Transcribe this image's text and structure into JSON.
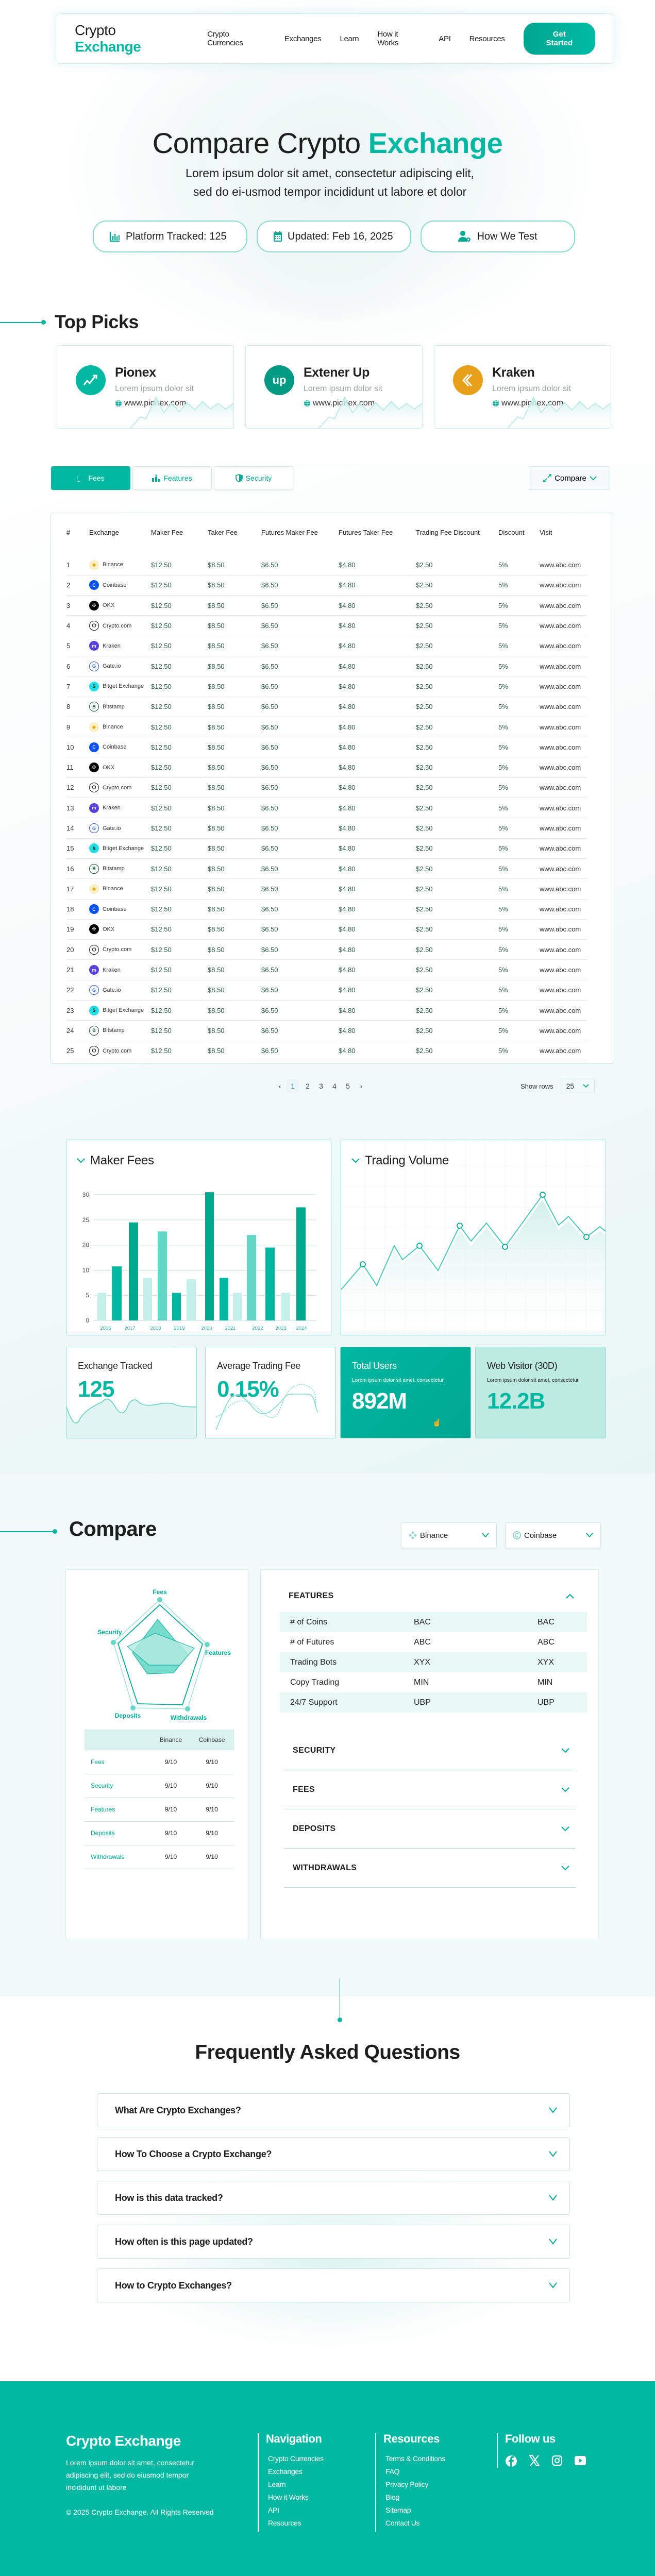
{
  "nav": {
    "logo_main": "Crypto ",
    "logo_accent": "Exchange",
    "links": [
      "Crypto Currencies",
      "Exchanges",
      "Learn",
      "How it Works",
      "API",
      "Resources"
    ],
    "cta": "Get Started"
  },
  "hero": {
    "title_main": "Compare Crypto ",
    "title_accent": "Exchange",
    "subtitle": "Lorem ipsum dolor sit amet, consectetur adipiscing elit, sed do ei-usmod tempor incididunt ut labore et dolor",
    "pills": [
      {
        "icon": "bar-chart-icon",
        "label": "Platform Tracked: 125"
      },
      {
        "icon": "calendar-icon",
        "label": "Updated: Feb 16, 2025"
      },
      {
        "icon": "user-gear-icon",
        "label": "How We Test"
      }
    ]
  },
  "top_picks": {
    "title": "Top Picks",
    "items": [
      {
        "name": "Pionex",
        "desc": "Lorem ipsum dolor sit",
        "url": "www.pionex.com",
        "color": "#00b8a2",
        "glyph": "↗"
      },
      {
        "name": "Extener Up",
        "desc": "Lorem ipsum dolor sit",
        "url": "www.pionex.com",
        "color": "#009982",
        "glyph": "up"
      },
      {
        "name": "Kraken",
        "desc": "Lorem ipsum dolor sit",
        "url": "www.pionex.com",
        "color": "#e6a01a",
        "glyph": "K"
      }
    ]
  },
  "tabs": [
    {
      "icon": "dollar-chat-icon",
      "label": "Fees",
      "active": true
    },
    {
      "icon": "podium-icon",
      "label": "Features",
      "active": false
    },
    {
      "icon": "shield-icon",
      "label": "Security",
      "active": false
    }
  ],
  "compare_button": "Compare",
  "fee_table": {
    "columns": [
      "#",
      "Exchange",
      "Maker Fee",
      "Taker Fee",
      "Futures Maker Fee",
      "Futures Taker Fee",
      "Trading Fee Discount",
      "Discount",
      "Visit"
    ],
    "rows": [
      {
        "n": "1",
        "exchange": "Binance",
        "maker": "$12.50",
        "taker": "$8.50",
        "fmaker": "$6.50",
        "ftaker": "$4.80",
        "tfd": "$2.50",
        "discount": "5%",
        "visit": "www.abc.com"
      },
      {
        "n": "2",
        "exchange": "Coinbase",
        "maker": "$12.50",
        "taker": "$8.50",
        "fmaker": "$6.50",
        "ftaker": "$4.80",
        "tfd": "$2.50",
        "discount": "5%",
        "visit": "www.abc.com"
      },
      {
        "n": "3",
        "exchange": "OKX",
        "maker": "$12.50",
        "taker": "$8.50",
        "fmaker": "$6.50",
        "ftaker": "$4.80",
        "tfd": "$2.50",
        "discount": "5%",
        "visit": "www.abc.com"
      },
      {
        "n": "4",
        "exchange": "Crypto.com",
        "maker": "$12.50",
        "taker": "$8.50",
        "fmaker": "$6.50",
        "ftaker": "$4.80",
        "tfd": "$2.50",
        "discount": "5%",
        "visit": "www.abc.com"
      },
      {
        "n": "5",
        "exchange": "Kraken",
        "maker": "$12.50",
        "taker": "$8.50",
        "fmaker": "$6.50",
        "ftaker": "$4.80",
        "tfd": "$2.50",
        "discount": "5%",
        "visit": "www.abc.com"
      },
      {
        "n": "6",
        "exchange": "Gate.io",
        "maker": "$12.50",
        "taker": "$8.50",
        "fmaker": "$6.50",
        "ftaker": "$4.80",
        "tfd": "$2.50",
        "discount": "5%",
        "visit": "www.abc.com"
      },
      {
        "n": "7",
        "exchange": "Bitget Exchange",
        "maker": "$12.50",
        "taker": "$8.50",
        "fmaker": "$6.50",
        "ftaker": "$4.80",
        "tfd": "$2.50",
        "discount": "5%",
        "visit": "www.abc.com"
      },
      {
        "n": "8",
        "exchange": "Bitstamp",
        "maker": "$12.50",
        "taker": "$8.50",
        "fmaker": "$6.50",
        "ftaker": "$4.80",
        "tfd": "$2.50",
        "discount": "5%",
        "visit": "www.abc.com"
      },
      {
        "n": "9",
        "exchange": "Binance",
        "maker": "$12.50",
        "taker": "$8.50",
        "fmaker": "$6.50",
        "ftaker": "$4.80",
        "tfd": "$2.50",
        "discount": "5%",
        "visit": "www.abc.com"
      },
      {
        "n": "10",
        "exchange": "Coinbase",
        "maker": "$12.50",
        "taker": "$8.50",
        "fmaker": "$6.50",
        "ftaker": "$4.80",
        "tfd": "$2.50",
        "discount": "5%",
        "visit": "www.abc.com"
      },
      {
        "n": "11",
        "exchange": "OKX",
        "maker": "$12.50",
        "taker": "$8.50",
        "fmaker": "$6.50",
        "ftaker": "$4.80",
        "tfd": "$2.50",
        "discount": "5%",
        "visit": "www.abc.com"
      },
      {
        "n": "12",
        "exchange": "Crypto.com",
        "maker": "$12.50",
        "taker": "$8.50",
        "fmaker": "$6.50",
        "ftaker": "$4.80",
        "tfd": "$2.50",
        "discount": "5%",
        "visit": "www.abc.com"
      },
      {
        "n": "13",
        "exchange": "Kraken",
        "maker": "$12.50",
        "taker": "$8.50",
        "fmaker": "$6.50",
        "ftaker": "$4.80",
        "tfd": "$2.50",
        "discount": "5%",
        "visit": "www.abc.com"
      },
      {
        "n": "14",
        "exchange": "Gate.io",
        "maker": "$12.50",
        "taker": "$8.50",
        "fmaker": "$6.50",
        "ftaker": "$4.80",
        "tfd": "$2.50",
        "discount": "5%",
        "visit": "www.abc.com"
      },
      {
        "n": "15",
        "exchange": "Bitget Exchange",
        "maker": "$12.50",
        "taker": "$8.50",
        "fmaker": "$6.50",
        "ftaker": "$4.80",
        "tfd": "$2.50",
        "discount": "5%",
        "visit": "www.abc.com"
      },
      {
        "n": "16",
        "exchange": "Bitstamp",
        "maker": "$12.50",
        "taker": "$8.50",
        "fmaker": "$6.50",
        "ftaker": "$4.80",
        "tfd": "$2.50",
        "discount": "5%",
        "visit": "www.abc.com"
      },
      {
        "n": "17",
        "exchange": "Binance",
        "maker": "$12.50",
        "taker": "$8.50",
        "fmaker": "$6.50",
        "ftaker": "$4.80",
        "tfd": "$2.50",
        "discount": "5%",
        "visit": "www.abc.com"
      },
      {
        "n": "18",
        "exchange": "Coinbase",
        "maker": "$12.50",
        "taker": "$8.50",
        "fmaker": "$6.50",
        "ftaker": "$4.80",
        "tfd": "$2.50",
        "discount": "5%",
        "visit": "www.abc.com"
      },
      {
        "n": "19",
        "exchange": "OKX",
        "maker": "$12.50",
        "taker": "$8.50",
        "fmaker": "$6.50",
        "ftaker": "$4.80",
        "tfd": "$2.50",
        "discount": "5%",
        "visit": "www.abc.com"
      },
      {
        "n": "20",
        "exchange": "Crypto.com",
        "maker": "$12.50",
        "taker": "$8.50",
        "fmaker": "$6.50",
        "ftaker": "$4.80",
        "tfd": "$2.50",
        "discount": "5%",
        "visit": "www.abc.com"
      },
      {
        "n": "21",
        "exchange": "Kraken",
        "maker": "$12.50",
        "taker": "$8.50",
        "fmaker": "$6.50",
        "ftaker": "$4.80",
        "tfd": "$2.50",
        "discount": "5%",
        "visit": "www.abc.com"
      },
      {
        "n": "22",
        "exchange": "Gate.io",
        "maker": "$12.50",
        "taker": "$8.50",
        "fmaker": "$6.50",
        "ftaker": "$4.80",
        "tfd": "$2.50",
        "discount": "5%",
        "visit": "www.abc.com"
      },
      {
        "n": "23",
        "exchange": "Bitget Exchange",
        "maker": "$12.50",
        "taker": "$8.50",
        "fmaker": "$6.50",
        "ftaker": "$4.80",
        "tfd": "$2.50",
        "discount": "5%",
        "visit": "www.abc.com"
      },
      {
        "n": "24",
        "exchange": "Bitstamp",
        "maker": "$12.50",
        "taker": "$8.50",
        "fmaker": "$6.50",
        "ftaker": "$4.80",
        "tfd": "$2.50",
        "discount": "5%",
        "visit": "www.abc.com"
      },
      {
        "n": "25",
        "exchange": "Crypto.com",
        "maker": "$12.50",
        "taker": "$8.50",
        "fmaker": "$6.50",
        "ftaker": "$4.80",
        "tfd": "$2.50",
        "discount": "5%",
        "visit": "www.abc.com"
      }
    ],
    "exchange_icons": {
      "Binance": {
        "bg": "#fcefc4",
        "fg": "#e5ac13",
        "glyph": "◆"
      },
      "Coinbase": {
        "bg": "#0052ff",
        "fg": "#fff",
        "glyph": "C"
      },
      "OKX": {
        "bg": "#000",
        "fg": "#fff",
        "glyph": "✣"
      },
      "Crypto.com": {
        "bg": "#fff",
        "fg": "#111",
        "glyph": "⬡"
      },
      "Kraken": {
        "bg": "#5741d9",
        "fg": "#fff",
        "glyph": "m"
      },
      "Gate.io": {
        "bg": "#fff",
        "fg": "#2354e6",
        "glyph": "G"
      },
      "Bitget Exchange": {
        "bg": "#1ee0e6",
        "fg": "#000",
        "glyph": "S"
      },
      "Bitstamp": {
        "bg": "#fff",
        "fg": "#0e4a2a",
        "glyph": "B"
      }
    }
  },
  "pagination": {
    "pages": [
      "1",
      "2",
      "3",
      "4",
      "5"
    ],
    "current": "1",
    "show_rows_label": "Show rows",
    "rows_value": "25"
  },
  "charts": {
    "maker_fees_title": "Maker Fees",
    "trading_volume_title": "Trading Volume"
  },
  "chart_data": [
    {
      "type": "bar",
      "title": "Maker Fees",
      "xlabel": "",
      "ylabel": "",
      "y_ticks": [
        "0",
        "5",
        "10",
        "20",
        "25",
        "30"
      ],
      "ylim": [
        0,
        30
      ],
      "x_tick_labels": [
        "2016",
        "2017",
        "2018",
        "2019",
        "2020",
        "2021",
        "2022",
        "2023",
        "2024"
      ],
      "bars": [
        {
          "value": 5.5,
          "shade": "light"
        },
        {
          "value": 11.5,
          "shade": "mid"
        },
        {
          "value": 24.5,
          "shade": "dark"
        },
        {
          "value": 8.5,
          "shade": "light"
        },
        {
          "value": 22.7,
          "shade": "soft"
        },
        {
          "value": 5.5,
          "shade": "mid"
        },
        {
          "value": 8.2,
          "shade": "light"
        },
        {
          "value": 30.5,
          "shade": "dark"
        },
        {
          "value": 8.5,
          "shade": "mid"
        },
        {
          "value": 5.5,
          "shade": "light"
        },
        {
          "value": 22.0,
          "shade": "soft"
        },
        {
          "value": 19.0,
          "shade": "mid"
        },
        {
          "value": 5.5,
          "shade": "light"
        },
        {
          "value": 27.5,
          "shade": "dark"
        }
      ],
      "grid": true
    },
    {
      "type": "area",
      "title": "Trading Volume",
      "x": [
        0,
        1,
        2,
        3,
        4,
        5,
        6,
        7,
        8,
        9,
        10,
        11,
        12,
        13,
        14,
        15,
        16,
        17,
        18,
        19,
        20
      ],
      "values": [
        26,
        38,
        28,
        47,
        39,
        45,
        35,
        57,
        50,
        59,
        45,
        71,
        65,
        60,
        40,
        55,
        58,
        40,
        40,
        51,
        50
      ],
      "markers_at": [
        1,
        5,
        7,
        10,
        11,
        17
      ],
      "ylim": [
        0,
        100
      ],
      "grid": true
    }
  ],
  "stats": [
    {
      "label": "Exchange Tracked",
      "value": "125"
    },
    {
      "label": "Average Trading Fee",
      "value": "0.15%"
    },
    {
      "label": "Total Users",
      "desc": "Lorem ipsum dolor sit amet, consectetur",
      "value": "892M"
    },
    {
      "label": "Web Visitor (30D)",
      "desc": "Lorem ipsum dolor sit amet, consectetur",
      "value": "12.2B"
    }
  ],
  "compare": {
    "title": "Compare",
    "selectors": [
      {
        "icon": "binance-icon",
        "label": "Binance"
      },
      {
        "icon": "coinbase-icon",
        "label": "Coinbase"
      }
    ],
    "radar_axes": [
      "Fees",
      "Features",
      "Withdrawals",
      "Deposits",
      "Security"
    ],
    "score_table": {
      "headers": [
        "",
        "Binance",
        "Coinbase"
      ],
      "rows": [
        {
          "name": "Fees",
          "a": "9/10",
          "b": "9/10"
        },
        {
          "name": "Security",
          "a": "9/10",
          "b": "9/10"
        },
        {
          "name": "Features",
          "a": "9/10",
          "b": "9/10"
        },
        {
          "name": "Deposits",
          "a": "9/10",
          "b": "9/10"
        },
        {
          "name": "Withdrawals",
          "a": "9/10",
          "b": "9/10"
        }
      ]
    },
    "features_title": "FEATURES",
    "features_rows": [
      {
        "name": "# of Coins",
        "a": "BAC",
        "b": "BAC"
      },
      {
        "name": "# of Futures",
        "a": "ABC",
        "b": "ABC"
      },
      {
        "name": "Trading Bots",
        "a": "XYX",
        "b": "XYX"
      },
      {
        "name": "Copy Trading",
        "a": "MIN",
        "b": "MIN"
      },
      {
        "name": "24/7 Support",
        "a": "UBP",
        "b": "UBP"
      }
    ],
    "collapsed_sections": [
      "SECURITY",
      "FEES",
      "DEPOSITS",
      "WITHDRAWALS"
    ]
  },
  "faq": {
    "title_bold": "Frequently Asked",
    "title_light": " Questions",
    "items": [
      "What Are Crypto Exchanges?",
      "How To Choose a Crypto Exchange?",
      "How is this data tracked?",
      "How often is this page updated?",
      "How to Crypto Exchanges?"
    ]
  },
  "footer": {
    "logo": "Crypto Exchange",
    "desc": "Lorem ipsum dolor sit amet, consectetur adipiscing elit, sed do eiusmod tempor incididunt ut labore",
    "copyright": "© 2025 Crypto Exchange. All Rights Reserved",
    "navigation_title": "Navigation",
    "navigation_links": [
      "Crypto Currencies",
      "Exchanges",
      "Learn",
      "How it Works",
      "API",
      "Resources"
    ],
    "resources_title": "Resources",
    "resources_links": [
      "Terms & Conditions",
      "FAQ",
      "Privacy Policy",
      "Blog",
      "Sitemap",
      "Contact Us"
    ],
    "follow_title": "Follow us",
    "socials": [
      "facebook-icon",
      "x-icon",
      "instagram-icon",
      "youtube-icon"
    ]
  },
  "colors": {
    "accent": "#00b8a2",
    "accent_dark": "#00a58f",
    "accent_light": "#c5efe9"
  }
}
